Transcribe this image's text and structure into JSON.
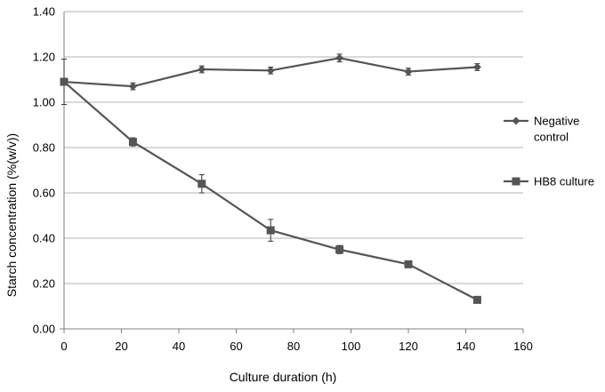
{
  "chart_data": {
    "type": "line",
    "title": "",
    "xlabel": "Culture duration (h)",
    "ylabel": "Starch concentration  (%(w/v))",
    "xlim": [
      0,
      160
    ],
    "ylim": [
      0.0,
      1.4
    ],
    "x_ticks": [
      0,
      20,
      40,
      60,
      80,
      100,
      120,
      140,
      160
    ],
    "x_tick_labels": [
      "0",
      "20",
      "40",
      "60",
      "80",
      "100",
      "120",
      "140",
      "160"
    ],
    "y_ticks": [
      0.0,
      0.2,
      0.4,
      0.6,
      0.8,
      1.0,
      1.2,
      1.4
    ],
    "y_tick_labels": [
      "0.00",
      "0.20",
      "0.40",
      "0.60",
      "0.80",
      "1.00",
      "1.20",
      "1.40"
    ],
    "grid": "horizontal",
    "legend_position": "right",
    "series_color": "#555555",
    "series": [
      {
        "name": "Negative control",
        "legend_lines": [
          "Negative",
          "control"
        ],
        "marker": "diamond",
        "x": [
          0,
          24,
          48,
          72,
          96,
          120,
          144
        ],
        "values": [
          1.09,
          1.07,
          1.145,
          1.14,
          1.195,
          1.135,
          1.155
        ],
        "errors": [
          0.1,
          0.015,
          0.015,
          0.015,
          0.017,
          0.015,
          0.015
        ]
      },
      {
        "name": "HB8 culture",
        "legend_lines": [
          "HB8 culture"
        ],
        "marker": "square",
        "x": [
          0,
          24,
          48,
          72,
          96,
          120,
          144
        ],
        "values": [
          1.09,
          0.825,
          0.64,
          0.435,
          0.35,
          0.285,
          0.128
        ],
        "errors": [
          0.015,
          0.018,
          0.04,
          0.048,
          0.018,
          0.01,
          0.012
        ]
      }
    ]
  }
}
